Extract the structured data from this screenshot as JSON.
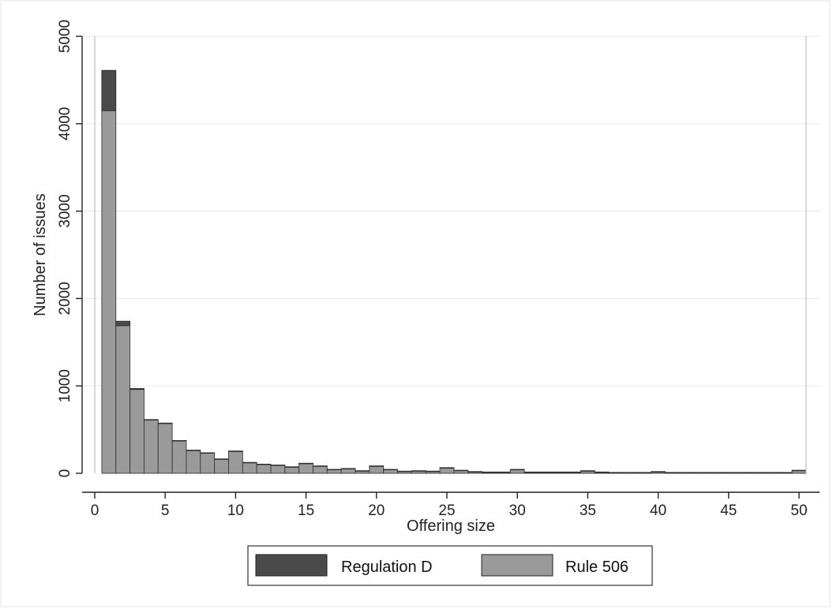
{
  "chart_data": {
    "type": "bar",
    "stacked": true,
    "title": "",
    "xlabel": "Offering size",
    "ylabel": "Number of issues",
    "xlim": [
      0,
      50
    ],
    "ylim": [
      0,
      5000
    ],
    "x_ticks": [
      0,
      5,
      10,
      15,
      20,
      25,
      30,
      35,
      40,
      45,
      50
    ],
    "y_ticks": [
      0,
      1000,
      2000,
      3000,
      4000,
      5000
    ],
    "bin_width": 1,
    "bin_centers": [
      1,
      2,
      3,
      4,
      5,
      6,
      7,
      8,
      9,
      10,
      11,
      12,
      13,
      14,
      15,
      16,
      17,
      18,
      19,
      20,
      21,
      22,
      23,
      24,
      25,
      26,
      27,
      28,
      29,
      30,
      31,
      32,
      33,
      34,
      35,
      36,
      37,
      38,
      39,
      40,
      41,
      42,
      43,
      44,
      45,
      46,
      47,
      48,
      49,
      50
    ],
    "series": [
      {
        "name": "Rule 506",
        "color": "#9a9a9a",
        "values": [
          4150,
          1690,
          960,
          610,
          570,
          370,
          260,
          230,
          160,
          250,
          120,
          100,
          90,
          70,
          110,
          80,
          40,
          50,
          25,
          80,
          40,
          20,
          25,
          20,
          60,
          30,
          15,
          10,
          10,
          40,
          10,
          10,
          10,
          10,
          25,
          10,
          5,
          5,
          5,
          15,
          5,
          5,
          5,
          5,
          5,
          5,
          5,
          5,
          5,
          30
        ]
      },
      {
        "name": "Regulation D",
        "color": "#4a4a4a",
        "values": [
          460,
          50,
          10,
          5,
          5,
          5,
          5,
          5,
          5,
          5,
          5,
          5,
          5,
          5,
          5,
          5,
          5,
          5,
          5,
          5,
          5,
          5,
          5,
          5,
          5,
          5,
          5,
          5,
          5,
          5,
          5,
          5,
          5,
          5,
          5,
          5,
          5,
          5,
          5,
          5,
          5,
          5,
          5,
          5,
          5,
          5,
          5,
          5,
          5,
          5
        ]
      }
    ],
    "legend": {
      "position": "bottom",
      "items": [
        {
          "label": "Regulation D",
          "color": "#4a4a4a"
        },
        {
          "label": "Rule 506",
          "color": "#9a9a9a"
        }
      ]
    },
    "grid": true
  }
}
